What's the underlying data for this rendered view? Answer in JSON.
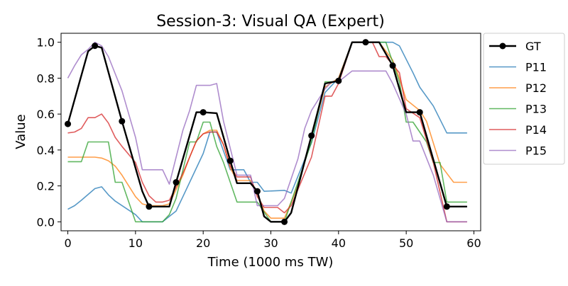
{
  "chart_data": {
    "type": "line",
    "title": "Session-3: Visual QA (Expert)",
    "xlabel": "Time (1000 ms TW)",
    "ylabel": "Value",
    "xlim": [
      -1,
      61
    ],
    "ylim": [
      -0.05,
      1.05
    ],
    "xticks": [
      0,
      10,
      20,
      30,
      40,
      50,
      60
    ],
    "yticks": [
      0.0,
      0.2,
      0.4,
      0.6,
      0.8,
      1.0
    ],
    "xtick_labels": [
      "0",
      "10",
      "20",
      "30",
      "40",
      "50",
      "60"
    ],
    "ytick_labels": [
      "0.0",
      "0.2",
      "0.4",
      "0.6",
      "0.8",
      "1.0"
    ],
    "grid": false,
    "legend_position": "outside-right",
    "series": [
      {
        "name": "GT",
        "color": "#000000",
        "marker": "circle",
        "points": [
          [
            0,
            0.545
          ],
          [
            3,
            0.95
          ],
          [
            4,
            0.98
          ],
          [
            5,
            0.97
          ],
          [
            8,
            0.56
          ],
          [
            11,
            0.17
          ],
          [
            12,
            0.085
          ],
          [
            15,
            0.085
          ],
          [
            16,
            0.22
          ],
          [
            19,
            0.61
          ],
          [
            20,
            0.61
          ],
          [
            22,
            0.605
          ],
          [
            24,
            0.34
          ],
          [
            25,
            0.215
          ],
          [
            27,
            0.215
          ],
          [
            28,
            0.17
          ],
          [
            29,
            0.03
          ],
          [
            30,
            0.0
          ],
          [
            32,
            0.0
          ],
          [
            33,
            0.05
          ],
          [
            36,
            0.48
          ],
          [
            38,
            0.77
          ],
          [
            40,
            0.785
          ],
          [
            42,
            1.0
          ],
          [
            44,
            1.0
          ],
          [
            46,
            1.0
          ],
          [
            48,
            0.87
          ],
          [
            50,
            0.61
          ],
          [
            51,
            0.61
          ],
          [
            52,
            0.61
          ],
          [
            56,
            0.085
          ],
          [
            59,
            0.085
          ]
        ],
        "marker_points": [
          [
            0,
            0.545
          ],
          [
            4,
            0.98
          ],
          [
            8,
            0.56
          ],
          [
            12,
            0.085
          ],
          [
            16,
            0.22
          ],
          [
            20,
            0.61
          ],
          [
            24,
            0.34
          ],
          [
            28,
            0.17
          ],
          [
            32,
            0.0
          ],
          [
            36,
            0.48
          ],
          [
            40,
            0.785
          ],
          [
            44,
            1.0
          ],
          [
            48,
            0.87
          ],
          [
            52,
            0.61
          ],
          [
            56,
            0.085
          ]
        ]
      },
      {
        "name": "P11",
        "color": "#1f77b4",
        "points": [
          [
            0,
            0.07
          ],
          [
            1,
            0.09
          ],
          [
            2,
            0.12
          ],
          [
            4,
            0.185
          ],
          [
            5,
            0.195
          ],
          [
            6,
            0.15
          ],
          [
            7,
            0.115
          ],
          [
            10,
            0.04
          ],
          [
            11,
            0.0
          ],
          [
            14,
            0.0
          ],
          [
            16,
            0.06
          ],
          [
            17,
            0.14
          ],
          [
            20,
            0.38
          ],
          [
            21,
            0.5
          ],
          [
            22,
            0.5
          ],
          [
            24,
            0.29
          ],
          [
            26,
            0.29
          ],
          [
            27,
            0.22
          ],
          [
            28,
            0.22
          ],
          [
            29,
            0.17
          ],
          [
            32,
            0.175
          ],
          [
            33,
            0.16
          ],
          [
            36,
            0.44
          ],
          [
            38,
            0.72
          ],
          [
            40,
            0.8
          ],
          [
            42,
            1.0
          ],
          [
            48,
            1.0
          ],
          [
            49,
            0.98
          ],
          [
            51,
            0.83
          ],
          [
            52,
            0.75
          ],
          [
            54,
            0.645
          ],
          [
            56,
            0.495
          ],
          [
            59,
            0.495
          ]
        ]
      },
      {
        "name": "P12",
        "color": "#ff7f0e",
        "points": [
          [
            0,
            0.36
          ],
          [
            4,
            0.36
          ],
          [
            5,
            0.355
          ],
          [
            6,
            0.34
          ],
          [
            7,
            0.31
          ],
          [
            8,
            0.26
          ],
          [
            9,
            0.2
          ],
          [
            10,
            0.14
          ],
          [
            11,
            0.1
          ],
          [
            12,
            0.09
          ],
          [
            14,
            0.09
          ],
          [
            15,
            0.1
          ],
          [
            17,
            0.26
          ],
          [
            18,
            0.36
          ],
          [
            19,
            0.45
          ],
          [
            20,
            0.49
          ],
          [
            21,
            0.51
          ],
          [
            22,
            0.51
          ],
          [
            23,
            0.43
          ],
          [
            24,
            0.3
          ],
          [
            25,
            0.23
          ],
          [
            27,
            0.23
          ],
          [
            28,
            0.16
          ],
          [
            29,
            0.06
          ],
          [
            30,
            0.02
          ],
          [
            32,
            0.02
          ],
          [
            34,
            0.2
          ],
          [
            38,
            0.75
          ],
          [
            40,
            0.8
          ],
          [
            42,
            1.0
          ],
          [
            46,
            1.0
          ],
          [
            48,
            0.9
          ],
          [
            49,
            0.8
          ],
          [
            50,
            0.68
          ],
          [
            52,
            0.62
          ],
          [
            53,
            0.56
          ],
          [
            55,
            0.32
          ],
          [
            57,
            0.22
          ],
          [
            59,
            0.22
          ]
        ]
      },
      {
        "name": "P13",
        "color": "#2ca02c",
        "points": [
          [
            0,
            0.335
          ],
          [
            2,
            0.335
          ],
          [
            3,
            0.445
          ],
          [
            6,
            0.445
          ],
          [
            7,
            0.22
          ],
          [
            8,
            0.22
          ],
          [
            10,
            0.0
          ],
          [
            14,
            0.0
          ],
          [
            15,
            0.04
          ],
          [
            16,
            0.13
          ],
          [
            18,
            0.445
          ],
          [
            19,
            0.445
          ],
          [
            20,
            0.555
          ],
          [
            21,
            0.555
          ],
          [
            22,
            0.42
          ],
          [
            23,
            0.33
          ],
          [
            24,
            0.22
          ],
          [
            25,
            0.11
          ],
          [
            28,
            0.11
          ],
          [
            29,
            0.055
          ],
          [
            30,
            0.0
          ],
          [
            32,
            0.0
          ],
          [
            34,
            0.22
          ],
          [
            36,
            0.445
          ],
          [
            38,
            0.78
          ],
          [
            39,
            0.78
          ],
          [
            40,
            0.78
          ],
          [
            42,
            1.0
          ],
          [
            47,
            1.0
          ],
          [
            49,
            0.78
          ],
          [
            50,
            0.555
          ],
          [
            51,
            0.555
          ],
          [
            53,
            0.445
          ],
          [
            54,
            0.33
          ],
          [
            55,
            0.33
          ],
          [
            56,
            0.11
          ],
          [
            59,
            0.11
          ]
        ]
      },
      {
        "name": "P14",
        "color": "#d62728",
        "points": [
          [
            0,
            0.495
          ],
          [
            1,
            0.5
          ],
          [
            2,
            0.52
          ],
          [
            3,
            0.58
          ],
          [
            4,
            0.58
          ],
          [
            5,
            0.6
          ],
          [
            6,
            0.55
          ],
          [
            7,
            0.47
          ],
          [
            8,
            0.42
          ],
          [
            10,
            0.33
          ],
          [
            11,
            0.22
          ],
          [
            12,
            0.145
          ],
          [
            13,
            0.11
          ],
          [
            14,
            0.11
          ],
          [
            15,
            0.12
          ],
          [
            17,
            0.27
          ],
          [
            19,
            0.45
          ],
          [
            20,
            0.49
          ],
          [
            21,
            0.5
          ],
          [
            22,
            0.5
          ],
          [
            23,
            0.43
          ],
          [
            24,
            0.31
          ],
          [
            25,
            0.25
          ],
          [
            27,
            0.25
          ],
          [
            28,
            0.14
          ],
          [
            29,
            0.08
          ],
          [
            31,
            0.08
          ],
          [
            32,
            0.05
          ],
          [
            33,
            0.09
          ],
          [
            36,
            0.36
          ],
          [
            38,
            0.7
          ],
          [
            39,
            0.7
          ],
          [
            40,
            0.77
          ],
          [
            42,
            1.0
          ],
          [
            43,
            1.0
          ],
          [
            45,
            1.0
          ],
          [
            46,
            0.92
          ],
          [
            47,
            0.92
          ],
          [
            49,
            0.83
          ],
          [
            50,
            0.63
          ],
          [
            52,
            0.58
          ],
          [
            54,
            0.33
          ],
          [
            56,
            0.0
          ],
          [
            59,
            0.0
          ]
        ]
      },
      {
        "name": "P15",
        "color": "#9467bd",
        "points": [
          [
            0,
            0.8
          ],
          [
            1,
            0.87
          ],
          [
            2,
            0.93
          ],
          [
            3,
            0.96
          ],
          [
            4,
            1.0
          ],
          [
            5,
            0.98
          ],
          [
            6,
            0.92
          ],
          [
            8,
            0.73
          ],
          [
            10,
            0.47
          ],
          [
            11,
            0.29
          ],
          [
            14,
            0.29
          ],
          [
            15,
            0.21
          ],
          [
            17,
            0.51
          ],
          [
            18,
            0.62
          ],
          [
            19,
            0.76
          ],
          [
            21,
            0.76
          ],
          [
            22,
            0.77
          ],
          [
            23,
            0.56
          ],
          [
            25,
            0.26
          ],
          [
            27,
            0.26
          ],
          [
            28,
            0.09
          ],
          [
            30,
            0.09
          ],
          [
            31,
            0.09
          ],
          [
            32,
            0.13
          ],
          [
            34,
            0.35
          ],
          [
            35,
            0.52
          ],
          [
            36,
            0.62
          ],
          [
            38,
            0.74
          ],
          [
            39,
            0.78
          ],
          [
            40,
            0.78
          ],
          [
            42,
            0.84
          ],
          [
            47,
            0.84
          ],
          [
            48,
            0.77
          ],
          [
            50,
            0.6
          ],
          [
            51,
            0.45
          ],
          [
            52,
            0.45
          ],
          [
            54,
            0.26
          ],
          [
            56,
            0.0
          ],
          [
            59,
            0.0
          ]
        ]
      }
    ]
  }
}
